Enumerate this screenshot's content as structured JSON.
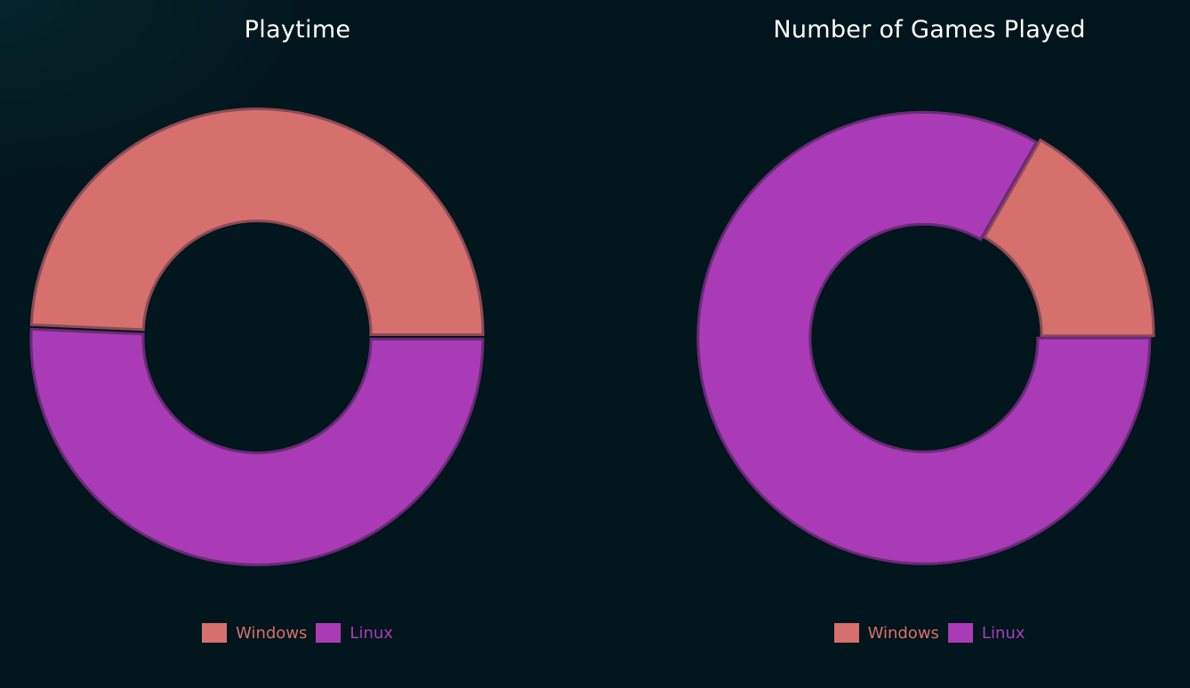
{
  "chart_data": [
    {
      "type": "pie",
      "title": "Playtime",
      "categories": [
        "Windows",
        "Linux"
      ],
      "values": [
        49.3,
        50.7
      ],
      "colors": [
        "#d6706d",
        "#aa3bb6"
      ],
      "legend_position": "bottom"
    },
    {
      "type": "pie",
      "title": "Number of Games Played",
      "categories": [
        "Windows",
        "Linux"
      ],
      "values": [
        16.7,
        83.3
      ],
      "colors": [
        "#d6706d",
        "#aa3bb6"
      ],
      "legend_position": "bottom"
    }
  ]
}
